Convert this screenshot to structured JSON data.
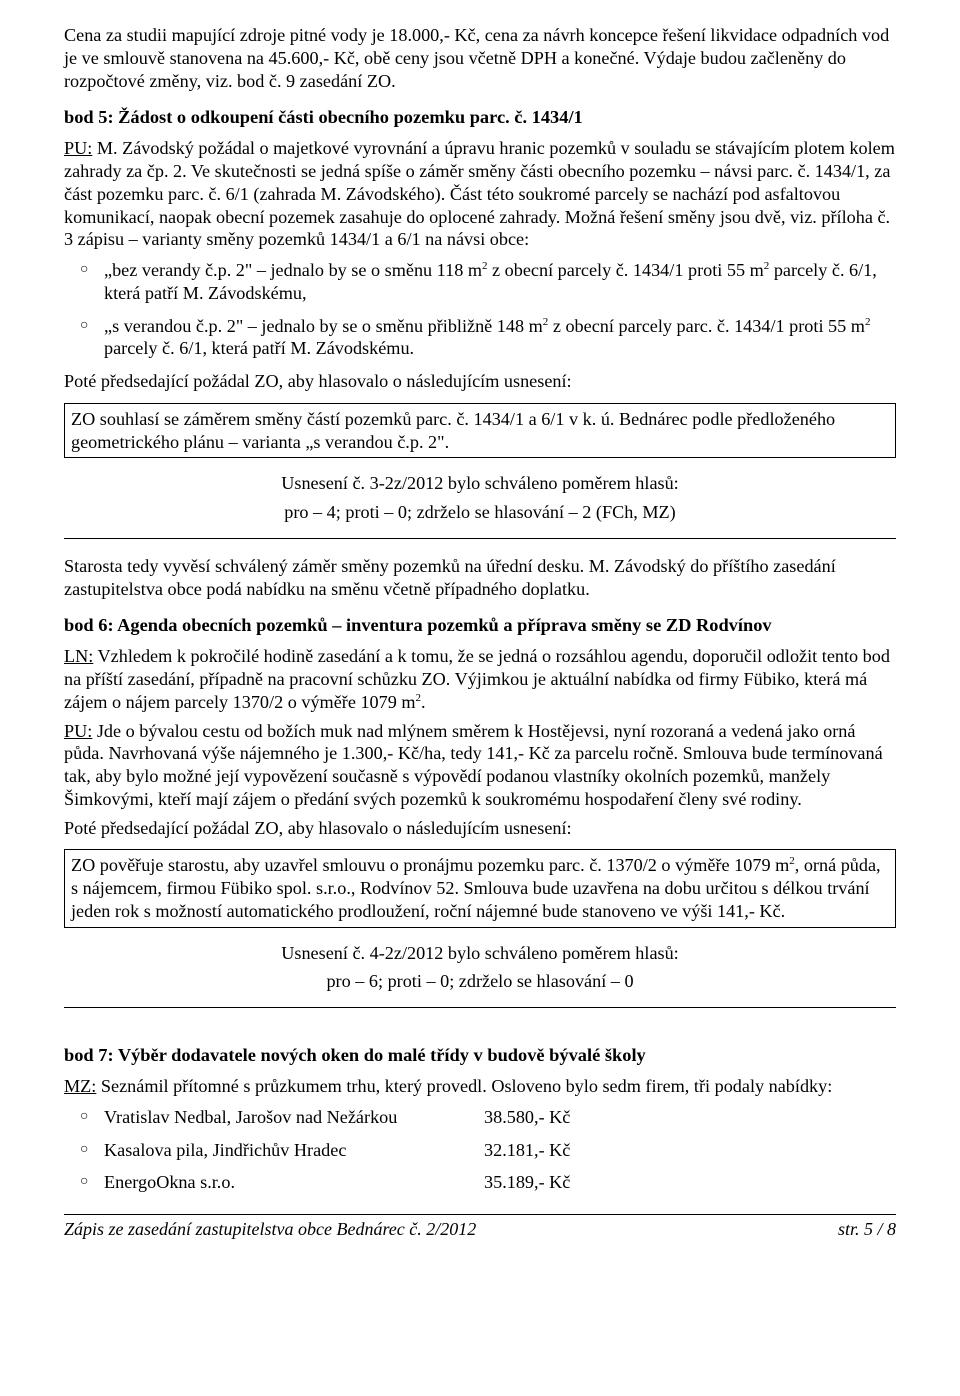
{
  "intro": {
    "p1": "Cena za studii mapující zdroje pitné vody je 18.000,- Kč, cena za návrh koncepce řešení likvidace odpadních vod je ve smlouvě stanovena na 45.600,- Kč, obě ceny jsou včetně DPH a konečné. Výdaje budou začleněny do rozpočtové změny, viz. bod č. 9 zasedání ZO."
  },
  "bod5": {
    "heading": "bod 5:   Žádost o odkoupení části obecního pozemku parc. č. 1434/1",
    "pu_label": "PU:",
    "pu_text": " M. Závodský požádal o majetkové vyrovnání a úpravu hranic pozemků v souladu se stávajícím plotem kolem zahrady za čp. 2. Ve skutečnosti se jedná spíše o záměr směny části obecního pozemku – návsi parc. č. 1434/1, za část pozemku parc. č. 6/1 (zahrada M. Závodského). Část této soukromé parcely se nachází pod asfaltovou komunikací, naopak obecní pozemek zasahuje do oplocené zahrady. Možná řešení směny jsou dvě, viz. příloha č. 3 zápisu – varianty směny pozemků 1434/1 a 6/1 na návsi obce:",
    "li1_a": "„bez verandy č.p. 2\" – jednalo by se o směnu 118 m",
    "li1_b": " z obecní parcely č. 1434/1 proti 55 m",
    "li1_c": " parcely č. 6/1, která patří M. Závodskému,",
    "li2_a": "„s verandou č.p. 2\" – jednalo by se o směnu přibližně 148 m",
    "li2_b": " z obecní parcely parc. č. 1434/1 proti 55 m",
    "li2_c": " parcely č. 6/1, která patří M. Závodskému.",
    "pote": "Poté předsedající požádal ZO, aby hlasovalo o následujícím usnesení:",
    "box": "ZO souhlasí se záměrem směny částí pozemků parc. č. 1434/1 a 6/1 v k. ú. Bednárec podle předloženého geometrického plánu – varianta „s verandou č.p. 2\".",
    "usneseni1": "Usnesení č. 3-2z/2012 bylo schváleno poměrem hlasů:",
    "usneseni2": "pro – 4; proti – 0; zdrželo se hlasování – 2 (FCh, MZ)",
    "after": "Starosta tedy vyvěsí schválený záměr směny pozemků na úřední desku. M. Závodský do příštího zasedání zastupitelstva obce podá nabídku na směnu včetně případného doplatku."
  },
  "bod6": {
    "heading": "bod 6:   Agenda obecních pozemků – inventura pozemků a příprava směny se ZD Rodvínov",
    "ln_label": "LN:",
    "ln_text_a": " Vzhledem k pokročilé hodině zasedání a k tomu, že se jedná o rozsáhlou agendu, doporučil odložit tento bod na příští zasedání, případně na pracovní schůzku ZO. Výjimkou je aktuální nabídka od firmy Fübiko, která má zájem o nájem parcely 1370/2 o výměře 1079 m",
    "ln_text_b": ".",
    "pu_label": "PU:",
    "pu_text": " Jde o bývalou cestu od božích muk nad mlýnem směrem k Hostějevsi, nyní rozoraná a vedená jako orná půda. Navrhovaná výše nájemného je 1.300,- Kč/ha, tedy 141,- Kč za parcelu ročně. Smlouva bude termínovaná tak, aby bylo možné její vypovězení současně s výpovědí podanou vlastníky okolních pozemků, manžely Šimkovými, kteří mají zájem o předání svých pozemků k soukromému hospodaření členy své rodiny.",
    "pote": "Poté předsedající požádal ZO, aby hlasovalo o následujícím usnesení:",
    "box_a": "ZO pověřuje starostu, aby uzavřel smlouvu o pronájmu pozemku parc. č. 1370/2 o výměře 1079 m",
    "box_b": ", orná půda, s nájemcem, firmou Fübiko spol. s.r.o., Rodvínov 52. Smlouva bude uzavřena na dobu určitou s délkou trvání jeden rok s možností automatického prodloužení, roční nájemné bude stanoveno ve výši 141,- Kč.",
    "usneseni1": "Usnesení č. 4-2z/2012 bylo schváleno poměrem hlasů:",
    "usneseni2": "pro – 6; proti – 0; zdrželo se hlasování – 0"
  },
  "bod7": {
    "heading": "bod 7:   Výběr dodavatele nových oken do malé třídy v budově bývalé školy",
    "mz_label": "MZ:",
    "mz_text": " Seznámil přítomné s průzkumem trhu, který provedl. Osloveno bylo sedm firem, tři podaly nabídky:",
    "offers": [
      {
        "name": "Vratislav Nedbal, Jarošov nad Nežárkou",
        "price": "38.580,- Kč"
      },
      {
        "name": "Kasalova pila, Jindřichův Hradec",
        "price": "32.181,- Kč"
      },
      {
        "name": "EnergoOkna s.r.o.",
        "price": "35.189,- Kč"
      }
    ]
  },
  "sup2": "2",
  "footer": {
    "left": "Zápis ze zasedání zastupitelstva obce Bednárec č. 2/2012",
    "right": "str. 5 / 8"
  }
}
